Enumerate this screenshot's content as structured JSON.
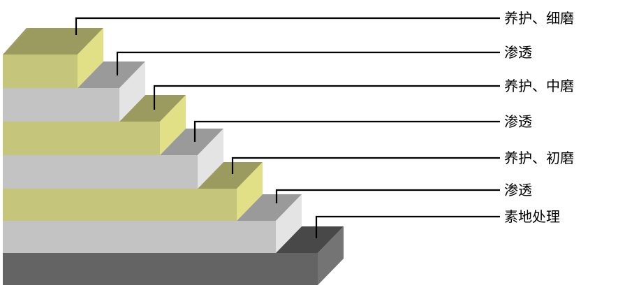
{
  "labels": [
    "养护、细磨",
    "渗透",
    "养护、中磨",
    "渗透",
    "养护、初磨",
    "渗透",
    "素地处理"
  ],
  "colors": {
    "olive": {
      "front": "#c6c57c",
      "top": "#9b9a5f",
      "side": "#e1e086"
    },
    "gray": {
      "front": "#c3c3c3",
      "top": "#9a9a9a",
      "side": "#e4e4e4"
    },
    "dark": {
      "front": "#646464",
      "top": "#484848",
      "side": "#747474"
    },
    "leader": "#000000"
  }
}
